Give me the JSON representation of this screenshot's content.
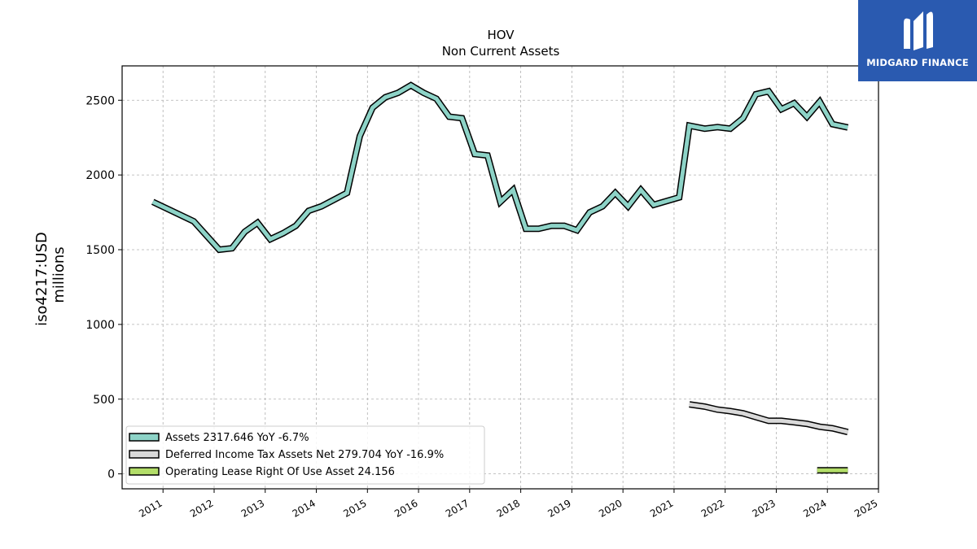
{
  "chart_data": {
    "type": "line",
    "title": "HOV",
    "subtitle": "Non Current  Assets",
    "ylabel_line1": "iso4217:USD",
    "ylabel_line2": "millions",
    "xlim": [
      2010.2,
      2025.0
    ],
    "ylim": [
      -100,
      2730
    ],
    "x_ticks": [
      2011,
      2012,
      2013,
      2014,
      2015,
      2016,
      2017,
      2018,
      2019,
      2020,
      2021,
      2022,
      2023,
      2024,
      2025
    ],
    "y_ticks": [
      0,
      500,
      1000,
      1500,
      2000,
      2500
    ],
    "grid": true,
    "legend_position": "lower-left",
    "series": [
      {
        "name": "Assets  2317.646 YoY -6.7%",
        "color": "#8dd3c7",
        "x": [
          2010.8,
          2011.6,
          2012.1,
          2012.35,
          2012.6,
          2012.85,
          2013.1,
          2013.35,
          2013.6,
          2013.85,
          2014.1,
          2014.6,
          2014.85,
          2015.1,
          2015.35,
          2015.6,
          2015.85,
          2016.1,
          2016.35,
          2016.6,
          2016.85,
          2017.1,
          2017.35,
          2017.6,
          2017.85,
          2018.1,
          2018.35,
          2018.6,
          2018.85,
          2019.1,
          2019.35,
          2019.6,
          2019.85,
          2020.1,
          2020.35,
          2020.6,
          2021.1,
          2021.3,
          2021.6,
          2021.85,
          2022.1,
          2022.35,
          2022.6,
          2022.85,
          2023.1,
          2023.35,
          2023.6,
          2023.85,
          2024.1,
          2024.4
        ],
        "y": [
          1820,
          1690,
          1500,
          1510,
          1620,
          1680,
          1570,
          1610,
          1660,
          1760,
          1790,
          1880,
          2260,
          2450,
          2520,
          2550,
          2600,
          2550,
          2510,
          2390,
          2380,
          2140,
          2130,
          1820,
          1900,
          1640,
          1640,
          1660,
          1660,
          1630,
          1750,
          1790,
          1880,
          1790,
          1900,
          1800,
          1850,
          2330,
          2310,
          2320,
          2310,
          2380,
          2540,
          2560,
          2440,
          2480,
          2390,
          2490,
          2340,
          2318
        ]
      },
      {
        "name": "Deferred Income Tax Assets Net  279.704 YoY -16.9%",
        "color": "#d9d9d9",
        "x": [
          2021.3,
          2021.6,
          2021.85,
          2022.1,
          2022.35,
          2022.6,
          2022.85,
          2023.1,
          2023.35,
          2023.6,
          2023.85,
          2024.1,
          2024.4
        ],
        "y": [
          465,
          450,
          430,
          420,
          405,
          380,
          355,
          355,
          345,
          335,
          315,
          305,
          280
        ]
      },
      {
        "name": "Operating Lease Right Of Use Asset  24.156",
        "color": "#b3de69",
        "x": [
          2023.8,
          2024.4
        ],
        "y": [
          24,
          24
        ]
      }
    ]
  },
  "brand": {
    "name": "MIDGARD FINANCE",
    "color": "#2a5ab0"
  }
}
